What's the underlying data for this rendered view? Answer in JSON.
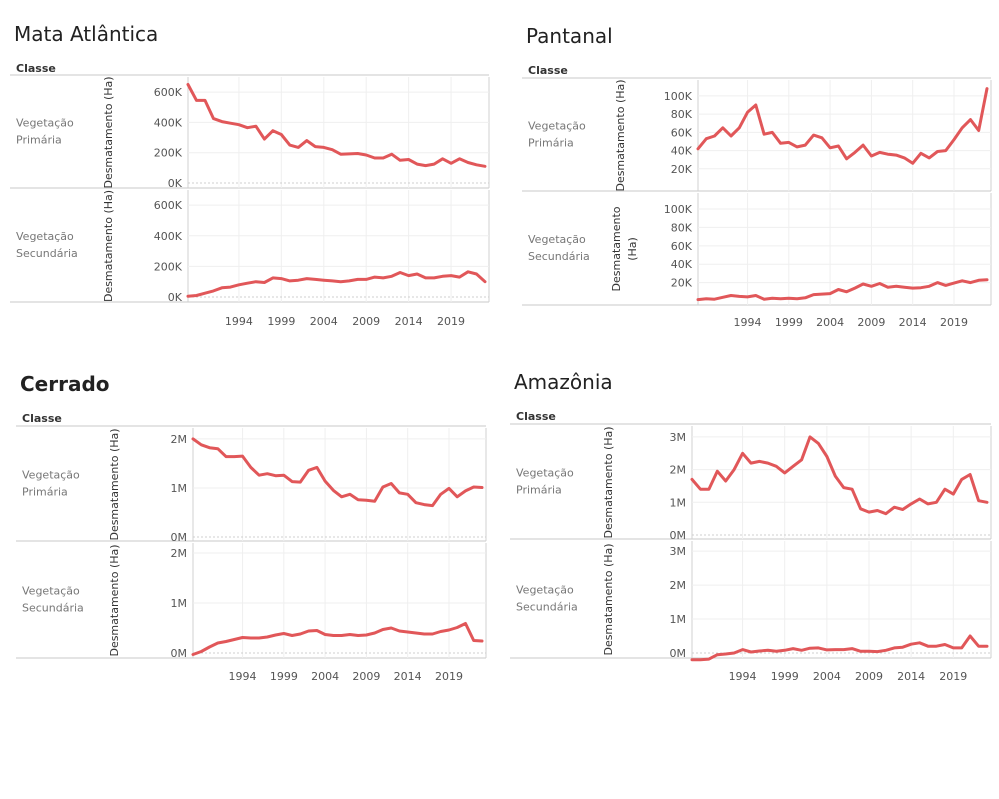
{
  "chart_data": [
    {
      "type": "line",
      "title": "Mata Atlântica",
      "row_header": "Classe",
      "ylabel": "Desmatamento (Ha)",
      "x_ticks": [
        1994,
        1999,
        2004,
        2009,
        2014,
        2019
      ],
      "y_ticks": [
        {
          "v": 0,
          "label": "0K"
        },
        {
          "v": 200000,
          "label": "200K"
        },
        {
          "v": 400000,
          "label": "400K"
        },
        {
          "v": 600000,
          "label": "600K"
        }
      ],
      "ylim": [
        0,
        660000
      ],
      "color": "#e15759",
      "rows": [
        {
          "name": "Vegetação Primária",
          "x": [
            1988,
            1989,
            1990,
            1991,
            1992,
            1993,
            1994,
            1995,
            1996,
            1997,
            1998,
            1999,
            2000,
            2001,
            2002,
            2003,
            2004,
            2005,
            2006,
            2007,
            2008,
            2009,
            2010,
            2011,
            2012,
            2013,
            2014,
            2015,
            2016,
            2017,
            2018,
            2019,
            2020,
            2021,
            2022,
            2023
          ],
          "values": [
            650000,
            545000,
            545000,
            425000,
            405000,
            395000,
            385000,
            365000,
            375000,
            290000,
            345000,
            320000,
            250000,
            235000,
            280000,
            240000,
            235000,
            220000,
            190000,
            192000,
            195000,
            185000,
            165000,
            165000,
            190000,
            150000,
            155000,
            125000,
            115000,
            125000,
            160000,
            130000,
            160000,
            135000,
            120000,
            110000
          ]
        },
        {
          "name": "Vegetação Secundária",
          "x": [
            1988,
            1989,
            1990,
            1991,
            1992,
            1993,
            1994,
            1995,
            1996,
            1997,
            1998,
            1999,
            2000,
            2001,
            2002,
            2003,
            2004,
            2005,
            2006,
            2007,
            2008,
            2009,
            2010,
            2011,
            2012,
            2013,
            2014,
            2015,
            2016,
            2017,
            2018,
            2019,
            2020,
            2021,
            2022,
            2023
          ],
          "values": [
            5000,
            10000,
            25000,
            40000,
            60000,
            65000,
            80000,
            90000,
            100000,
            95000,
            125000,
            120000,
            105000,
            110000,
            120000,
            115000,
            110000,
            105000,
            100000,
            105000,
            115000,
            115000,
            130000,
            125000,
            135000,
            160000,
            140000,
            150000,
            125000,
            125000,
            135000,
            140000,
            130000,
            165000,
            150000,
            100000
          ]
        }
      ]
    },
    {
      "type": "line",
      "title": "Pantanal",
      "row_header": "Classe",
      "ylabel": "Desmatamento (Ha)",
      "x_ticks": [
        1994,
        1999,
        2004,
        2009,
        2014,
        2019
      ],
      "y_ticks": [
        {
          "v": 20000,
          "label": "20K"
        },
        {
          "v": 40000,
          "label": "40K"
        },
        {
          "v": 60000,
          "label": "60K"
        },
        {
          "v": 80000,
          "label": "80K"
        },
        {
          "v": 100000,
          "label": "100K"
        }
      ],
      "ylim": [
        0,
        112000
      ],
      "color": "#e15759",
      "rows": [
        {
          "name": "Vegetação Primária",
          "x": [
            1988,
            1989,
            1990,
            1991,
            1992,
            1993,
            1994,
            1995,
            1996,
            1997,
            1998,
            1999,
            2000,
            2001,
            2002,
            2003,
            2004,
            2005,
            2006,
            2007,
            2008,
            2009,
            2010,
            2011,
            2012,
            2013,
            2014,
            2015,
            2016,
            2017,
            2018,
            2019,
            2020,
            2021,
            2022,
            2023
          ],
          "values": [
            42000,
            53000,
            56000,
            65000,
            56000,
            65000,
            82000,
            90000,
            58000,
            60000,
            48000,
            49000,
            44000,
            46000,
            57000,
            54000,
            43000,
            45000,
            31000,
            38000,
            46000,
            34000,
            38000,
            36000,
            35000,
            32000,
            26000,
            37000,
            32000,
            39000,
            40000,
            52000,
            65000,
            74000,
            62000,
            108000
          ]
        },
        {
          "name": "Vegetação Secundária",
          "x": [
            1988,
            1989,
            1990,
            1991,
            1992,
            1993,
            1994,
            1995,
            1996,
            1997,
            1998,
            1999,
            2000,
            2001,
            2002,
            2003,
            2004,
            2005,
            2006,
            2007,
            2008,
            2009,
            2010,
            2011,
            2012,
            2013,
            2014,
            2015,
            2016,
            2017,
            2018,
            2019,
            2020,
            2021,
            2022,
            2023
          ],
          "values": [
            1500,
            2500,
            2000,
            4000,
            6000,
            5000,
            4500,
            6000,
            2000,
            3000,
            2500,
            3000,
            2500,
            3500,
            7000,
            7500,
            8000,
            12500,
            10000,
            14000,
            18500,
            16000,
            19000,
            15000,
            16000,
            15000,
            14000,
            14500,
            16000,
            20000,
            17000,
            19500,
            22000,
            20000,
            22500,
            23000
          ]
        }
      ]
    },
    {
      "type": "line",
      "title": "Cerrado",
      "row_header": "Classe",
      "ylabel": "Desmatamento (Ha)",
      "x_ticks": [
        1994,
        1999,
        2004,
        2009,
        2014,
        2019
      ],
      "y_ticks": [
        {
          "v": 0,
          "label": "0M"
        },
        {
          "v": 1000000,
          "label": "1M"
        },
        {
          "v": 2000000,
          "label": "2M"
        }
      ],
      "ylim": [
        0,
        2100000
      ],
      "color": "#e15759",
      "rows": [
        {
          "name": "Vegetação Primária",
          "x": [
            1988,
            1989,
            1990,
            1991,
            1992,
            1993,
            1994,
            1995,
            1996,
            1997,
            1998,
            1999,
            2000,
            2001,
            2002,
            2003,
            2004,
            2005,
            2006,
            2007,
            2008,
            2009,
            2010,
            2011,
            2012,
            2013,
            2014,
            2015,
            2016,
            2017,
            2018,
            2019,
            2020,
            2021,
            2022,
            2023
          ],
          "values": [
            2000000,
            1880000,
            1820000,
            1800000,
            1640000,
            1640000,
            1650000,
            1420000,
            1260000,
            1290000,
            1250000,
            1260000,
            1130000,
            1120000,
            1360000,
            1420000,
            1140000,
            950000,
            820000,
            870000,
            760000,
            750000,
            730000,
            1020000,
            1090000,
            900000,
            870000,
            700000,
            660000,
            640000,
            870000,
            990000,
            820000,
            940000,
            1020000,
            1010000
          ]
        },
        {
          "name": "Vegetação Secundária",
          "x": [
            1988,
            1989,
            1990,
            1991,
            1992,
            1993,
            1994,
            1995,
            1996,
            1997,
            1998,
            1999,
            2000,
            2001,
            2002,
            2003,
            2004,
            2005,
            2006,
            2007,
            2008,
            2009,
            2010,
            2011,
            2012,
            2013,
            2014,
            2015,
            2016,
            2017,
            2018,
            2019,
            2020,
            2021,
            2022,
            2023
          ],
          "values": [
            -30000,
            30000,
            120000,
            200000,
            230000,
            270000,
            310000,
            300000,
            300000,
            320000,
            360000,
            390000,
            350000,
            380000,
            440000,
            450000,
            370000,
            350000,
            350000,
            370000,
            350000,
            360000,
            400000,
            470000,
            500000,
            440000,
            420000,
            400000,
            380000,
            380000,
            430000,
            460000,
            510000,
            590000,
            250000,
            240000
          ]
        }
      ]
    },
    {
      "type": "line",
      "title": "Amazônia",
      "row_header": "Classe",
      "ylabel": "Desmatamento (Ha)",
      "x_ticks": [
        1994,
        1999,
        2004,
        2009,
        2014,
        2019
      ],
      "y_ticks": [
        {
          "v": 0,
          "label": "0M"
        },
        {
          "v": 1000000,
          "label": "1M"
        },
        {
          "v": 2000000,
          "label": "2M"
        },
        {
          "v": 3000000,
          "label": "3M"
        }
      ],
      "ylim": [
        0,
        3150000
      ],
      "color": "#e15759",
      "rows": [
        {
          "name": "Vegetação Primária",
          "x": [
            1988,
            1989,
            1990,
            1991,
            1992,
            1993,
            1994,
            1995,
            1996,
            1997,
            1998,
            1999,
            2000,
            2001,
            2002,
            2003,
            2004,
            2005,
            2006,
            2007,
            2008,
            2009,
            2010,
            2011,
            2012,
            2013,
            2014,
            2015,
            2016,
            2017,
            2018,
            2019,
            2020,
            2021,
            2022,
            2023
          ],
          "values": [
            1700000,
            1400000,
            1400000,
            1950000,
            1650000,
            2000000,
            2500000,
            2200000,
            2250000,
            2200000,
            2100000,
            1900000,
            2100000,
            2300000,
            3000000,
            2800000,
            2400000,
            1800000,
            1450000,
            1400000,
            800000,
            700000,
            750000,
            650000,
            850000,
            780000,
            950000,
            1100000,
            950000,
            1000000,
            1400000,
            1250000,
            1700000,
            1850000,
            1050000,
            1000000
          ]
        },
        {
          "name": "Vegetação Secundária",
          "x": [
            1988,
            1989,
            1990,
            1991,
            1992,
            1993,
            1994,
            1995,
            1996,
            1997,
            1998,
            1999,
            2000,
            2001,
            2002,
            2003,
            2004,
            2005,
            2006,
            2007,
            2008,
            2009,
            2010,
            2011,
            2012,
            2013,
            2014,
            2015,
            2016,
            2017,
            2018,
            2019,
            2020,
            2021,
            2022,
            2023
          ],
          "values": [
            -200000,
            -200000,
            -180000,
            -50000,
            -30000,
            0,
            100000,
            30000,
            60000,
            80000,
            50000,
            80000,
            130000,
            80000,
            140000,
            150000,
            90000,
            100000,
            100000,
            130000,
            50000,
            50000,
            40000,
            80000,
            150000,
            170000,
            260000,
            300000,
            200000,
            200000,
            250000,
            150000,
            150000,
            500000,
            200000,
            200000
          ]
        }
      ]
    }
  ]
}
